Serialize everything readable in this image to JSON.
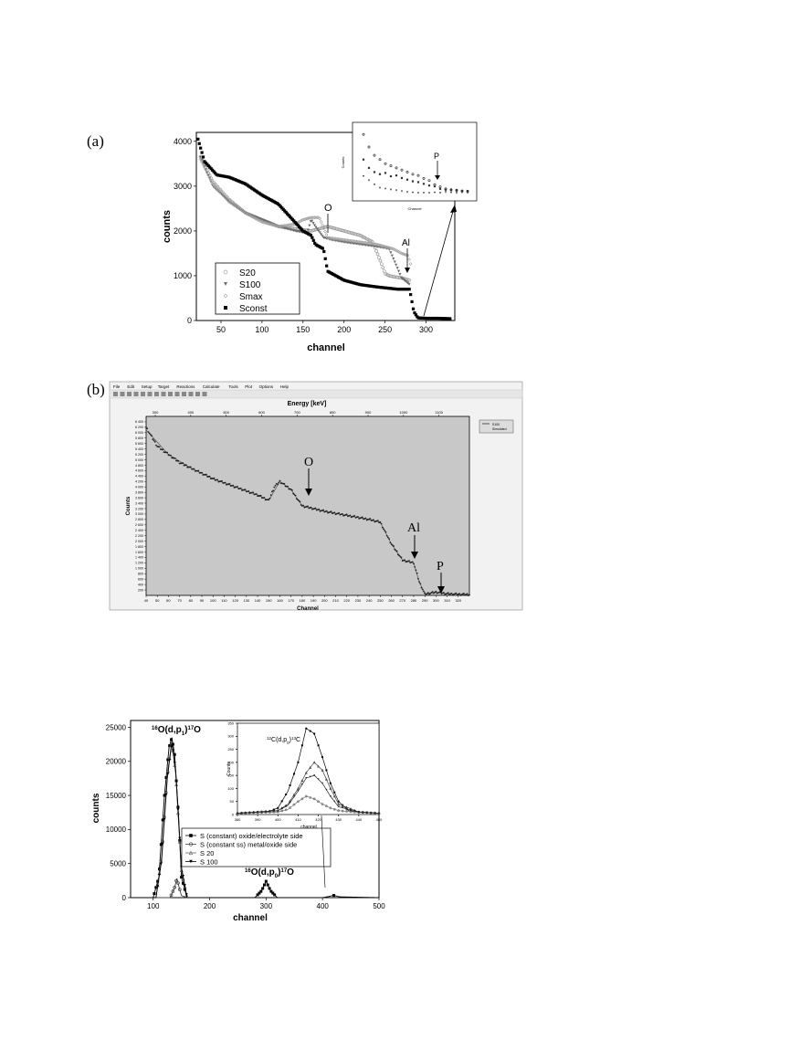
{
  "panels": {
    "a": "(a)",
    "b": "(b)"
  },
  "colors": {
    "ink": "#000000",
    "light_series": "#a0a0a0",
    "mid_series": "#6a6a6a",
    "plot_bg_b": "#c8c8c8",
    "toolbar_bg": "#eeeeee"
  },
  "software": {
    "menu": [
      "File",
      "Edit",
      "Setup",
      "Target",
      "Reactions",
      "Calculate",
      "Tools",
      "Plot",
      "Options",
      "Help"
    ],
    "legend": [
      "S100",
      "Simulated"
    ]
  },
  "chart_data": [
    {
      "id": "a-main",
      "type": "scatter",
      "xlabel": "channel",
      "ylabel": "counts",
      "xlim": [
        20,
        335
      ],
      "ylim": [
        0,
        4200
      ],
      "xticks": [
        50,
        100,
        150,
        200,
        250,
        300
      ],
      "yticks": [
        0,
        1000,
        2000,
        3000,
        4000
      ],
      "legend_position": "bottom-left",
      "annotations": [
        "O",
        "Al"
      ],
      "series": [
        {
          "name": "S20",
          "marker": "open-circle",
          "color": "#a0a0a0",
          "x": [
            25,
            40,
            60,
            80,
            100,
            120,
            140,
            160,
            170,
            180,
            200,
            220,
            235,
            245,
            250,
            255,
            260,
            270,
            280
          ],
          "y": [
            3650,
            3100,
            2700,
            2400,
            2250,
            2100,
            2050,
            2000,
            2050,
            2100,
            2000,
            1900,
            1750,
            1300,
            1050,
            1000,
            980,
            950,
            900
          ]
        },
        {
          "name": "S100",
          "marker": "filled-triangle",
          "color": "#6a6a6a",
          "x": [
            25,
            40,
            60,
            80,
            100,
            120,
            140,
            155,
            160,
            165,
            175,
            185,
            200,
            220,
            240,
            255,
            262,
            270,
            280
          ],
          "y": [
            3650,
            3000,
            2650,
            2400,
            2250,
            2100,
            2000,
            1950,
            2250,
            2100,
            1850,
            1800,
            1750,
            1700,
            1650,
            1600,
            1300,
            950,
            800
          ]
        },
        {
          "name": "Smax",
          "marker": "open-diamond",
          "color": "#a0a0a0",
          "x": [
            25,
            40,
            60,
            80,
            100,
            120,
            140,
            150,
            160,
            170,
            180,
            200,
            220,
            240,
            260,
            270,
            278,
            282
          ],
          "y": [
            3600,
            3050,
            2650,
            2400,
            2200,
            2100,
            2150,
            2250,
            2300,
            2300,
            1850,
            1800,
            1750,
            1700,
            1600,
            1500,
            1450,
            1200
          ]
        },
        {
          "name": "Sconst",
          "marker": "filled-square",
          "color": "#000000",
          "x": [
            22,
            30,
            45,
            60,
            80,
            100,
            120,
            140,
            150,
            160,
            165,
            175,
            180,
            200,
            220,
            240,
            255,
            265,
            280,
            285,
            290,
            300,
            315,
            330
          ],
          "y": [
            4050,
            3550,
            3250,
            3200,
            3050,
            2800,
            2600,
            2200,
            2000,
            1900,
            1700,
            1600,
            1100,
            900,
            800,
            750,
            720,
            700,
            700,
            200,
            60,
            50,
            50,
            40
          ]
        }
      ]
    },
    {
      "id": "a-inset",
      "type": "scatter",
      "xlabel": "Channel",
      "ylabel": "Counts",
      "annotations": [
        "P"
      ],
      "series": [
        {
          "name": "",
          "marker": "open-circle",
          "x": [
            1,
            2,
            3,
            4,
            5,
            6,
            7,
            8,
            9,
            10,
            11,
            12,
            13,
            14,
            15,
            16,
            17,
            18,
            19,
            20
          ],
          "y": [
            180,
            150,
            130,
            120,
            110,
            105,
            100,
            95,
            90,
            85,
            82,
            75,
            70,
            60,
            55,
            50,
            48,
            47,
            45,
            44
          ]
        },
        {
          "name": "",
          "marker": "filled-square",
          "x": [
            1,
            2,
            3,
            4,
            5,
            6,
            7,
            8,
            9,
            10,
            11,
            12,
            13,
            14,
            15,
            16,
            17,
            18,
            19,
            20
          ],
          "y": [
            120,
            100,
            90,
            85,
            88,
            80,
            82,
            76,
            72,
            68,
            66,
            62,
            58,
            56,
            50,
            48,
            47,
            46,
            45,
            45
          ]
        },
        {
          "name": "",
          "marker": "filled-triangle",
          "x": [
            1,
            2,
            3,
            4,
            5,
            6,
            7,
            8,
            9,
            10,
            11,
            12,
            13,
            14,
            15,
            16,
            17,
            18,
            19,
            20
          ],
          "y": [
            80,
            70,
            60,
            52,
            50,
            48,
            46,
            44,
            42,
            41,
            40,
            40,
            40,
            41,
            40,
            42,
            41,
            40,
            41,
            40
          ]
        }
      ]
    },
    {
      "id": "b",
      "type": "line",
      "title": "Energy [keV]",
      "xlabel": "Channel",
      "ylabel": "Counts",
      "xlim": [
        40,
        330
      ],
      "ylim": [
        0,
        6600
      ],
      "xticks": [
        40,
        50,
        60,
        70,
        80,
        90,
        100,
        110,
        120,
        130,
        140,
        150,
        160,
        170,
        180,
        190,
        200,
        210,
        220,
        230,
        240,
        250,
        260,
        270,
        280,
        290,
        300,
        310,
        320
      ],
      "yticks": [
        200,
        400,
        600,
        800,
        1000,
        1200,
        1400,
        1600,
        1800,
        2000,
        2200,
        2400,
        2600,
        2800,
        3000,
        3200,
        3400,
        3600,
        3800,
        4000,
        4200,
        4400,
        4600,
        4800,
        5000,
        5200,
        5400,
        5600,
        5800,
        6000,
        6200,
        6400
      ],
      "top_ticks": [
        300,
        400,
        500,
        600,
        700,
        800,
        900,
        1000,
        1100
      ],
      "annotations": [
        "O",
        "Al",
        "P"
      ],
      "series": [
        {
          "name": "S100",
          "x": [
            40,
            50,
            60,
            70,
            80,
            100,
            120,
            140,
            150,
            155,
            160,
            170,
            180,
            200,
            220,
            240,
            250,
            255,
            260,
            270,
            280,
            285,
            290,
            300,
            310,
            320,
            330
          ],
          "y": [
            6200,
            5500,
            5200,
            4900,
            4700,
            4300,
            4000,
            3700,
            3500,
            4000,
            4200,
            3900,
            3300,
            3100,
            2950,
            2800,
            2700,
            2300,
            1900,
            1300,
            1200,
            500,
            50,
            120,
            60,
            40,
            30
          ]
        },
        {
          "name": "Simulated",
          "x": [
            40,
            60,
            80,
            100,
            120,
            140,
            150,
            160,
            170,
            180,
            200,
            220,
            240,
            250,
            260,
            270,
            280,
            285,
            290,
            300,
            310,
            330
          ],
          "y": [
            6100,
            5200,
            4700,
            4300,
            4000,
            3700,
            3500,
            4200,
            3900,
            3300,
            3100,
            2950,
            2800,
            2700,
            1900,
            1300,
            1200,
            500,
            50,
            110,
            60,
            30
          ]
        }
      ]
    },
    {
      "id": "c-main",
      "type": "line",
      "xlabel": "channel",
      "ylabel": "counts",
      "xlim": [
        60,
        500
      ],
      "ylim": [
        0,
        26000
      ],
      "xticks": [
        100,
        200,
        300,
        400,
        500
      ],
      "yticks": [
        0,
        5000,
        10000,
        15000,
        20000,
        25000
      ],
      "legend_position": "center-left",
      "annotations": [
        "16O(d,p1)17O",
        "16O(d,p0)17O"
      ],
      "series": [
        {
          "name": "S (constant) oxide/electrolyte side",
          "marker": "filled-square",
          "x": [
            60,
            100,
            110,
            120,
            128,
            133,
            138,
            145,
            150,
            160,
            280,
            292,
            300,
            308,
            320,
            400,
            410,
            420,
            430,
            500
          ],
          "y": [
            0,
            0,
            3000,
            15000,
            22000,
            23500,
            21000,
            12000,
            3000,
            0,
            0,
            1000,
            2400,
            1000,
            0,
            0,
            150,
            320,
            120,
            0
          ]
        },
        {
          "name": "S (constant ss) metal/oxide side",
          "marker": "open-circle",
          "x": [
            60,
            130,
            138,
            142,
            146,
            150,
            160,
            500
          ],
          "y": [
            0,
            0,
            1500,
            2800,
            1500,
            300,
            0,
            0
          ]
        },
        {
          "name": "S 20",
          "marker": "open-triangle",
          "x": [
            60,
            105,
            115,
            125,
            133,
            140,
            150,
            160,
            500
          ],
          "y": [
            0,
            0,
            6000,
            18000,
            23000,
            18000,
            4000,
            0,
            0
          ]
        },
        {
          "name": "S 100",
          "marker": "filled-triangle",
          "x": [
            60,
            105,
            115,
            125,
            133,
            140,
            150,
            160,
            500
          ],
          "y": [
            0,
            0,
            5500,
            17500,
            22800,
            18500,
            4500,
            0,
            0
          ]
        }
      ]
    },
    {
      "id": "c-inset",
      "type": "line",
      "xlabel": "channel",
      "ylabel": "Counts",
      "xlim": [
        380,
        450
      ],
      "ylim": [
        0,
        350
      ],
      "xticks": [
        380,
        390,
        400,
        410,
        420,
        430,
        440,
        450
      ],
      "yticks": [
        0,
        50,
        100,
        150,
        200,
        250,
        300,
        350
      ],
      "annotations": [
        "12C(d,p0)13C"
      ],
      "series": [
        {
          "name": "S (constant) oxide/electrolyte side",
          "x": [
            380,
            395,
            400,
            405,
            410,
            414,
            418,
            422,
            426,
            430,
            435,
            440,
            450
          ],
          "y": [
            5,
            10,
            25,
            90,
            200,
            330,
            310,
            220,
            120,
            50,
            15,
            10,
            5
          ]
        },
        {
          "name": "S (constant ss) metal/oxide side",
          "x": [
            380,
            400,
            405,
            410,
            414,
            418,
            422,
            426,
            430,
            440,
            450
          ],
          "y": [
            5,
            10,
            20,
            50,
            70,
            60,
            40,
            25,
            15,
            8,
            5
          ]
        },
        {
          "name": "S 20",
          "x": [
            380,
            400,
            405,
            410,
            414,
            418,
            422,
            426,
            430,
            440,
            450
          ],
          "y": [
            5,
            15,
            40,
            100,
            160,
            200,
            170,
            100,
            40,
            10,
            5
          ]
        },
        {
          "name": "S 100",
          "x": [
            380,
            400,
            405,
            410,
            414,
            418,
            422,
            426,
            430,
            440,
            450
          ],
          "y": [
            5,
            15,
            35,
            90,
            140,
            150,
            120,
            70,
            30,
            10,
            5
          ]
        }
      ]
    }
  ]
}
